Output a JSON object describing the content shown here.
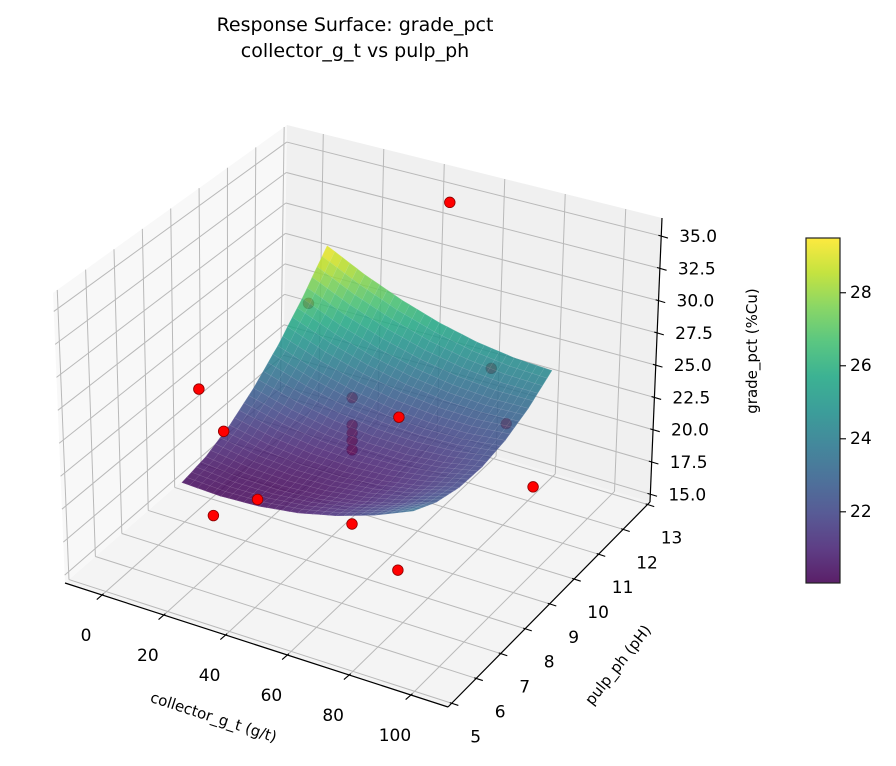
{
  "chart_data": {
    "type": "surface3d",
    "title": "Response Surface: grade_pct",
    "subtitle": "collector_g_t vs pulp_ph",
    "xlabel": "collector_g_t (g/t)",
    "ylabel": "pulp_ph (pH)",
    "zlabel": "grade_pct (%Cu)",
    "xlim": [
      -12,
      112
    ],
    "ylim": [
      4.85,
      13.1
    ],
    "zlim": [
      14.4,
      36.4
    ],
    "xticks": [
      "0",
      "20",
      "40",
      "60",
      "80",
      "100"
    ],
    "yticks": [
      "5",
      "6",
      "7",
      "8",
      "9",
      "10",
      "11",
      "12",
      "13"
    ],
    "zticks": [
      "15.0",
      "17.5",
      "20.0",
      "22.5",
      "25.0",
      "27.5",
      "30.0",
      "32.5",
      "35.0"
    ],
    "grid": true,
    "colormap": "viridis",
    "colorbar": {
      "range": [
        20.05,
        29.5
      ],
      "ticks": [
        "22",
        "24",
        "26",
        "28"
      ],
      "placement": "right"
    },
    "surface": {
      "x": [
        10,
        22.5,
        35,
        47.5,
        60,
        72.5,
        85
      ],
      "y": [
        6.8,
        7.7,
        8.6,
        9.5,
        10.4,
        11.3,
        12.2
      ],
      "z": [
        [
          20.3,
          20.17,
          20.3,
          20.7,
          21.37,
          22.3,
          23.5
        ],
        [
          20.72,
          20.36,
          20.27,
          20.44,
          20.88,
          21.58,
          22.56
        ],
        [
          21.59,
          21.0,
          20.68,
          20.62,
          20.83,
          21.31,
          22.06
        ],
        [
          22.9,
          22.08,
          21.53,
          21.25,
          21.23,
          21.48,
          22.0
        ],
        [
          24.66,
          23.61,
          22.83,
          22.32,
          22.08,
          22.1,
          22.39
        ],
        [
          26.86,
          25.58,
          24.58,
          23.84,
          23.37,
          23.16,
          23.22
        ],
        [
          29.5,
          28.0,
          26.77,
          25.8,
          25.1,
          24.67,
          24.5
        ]
      ],
      "alpha": 0.85
    },
    "points": {
      "color": "#ff0000",
      "edge_color": "#8b0000",
      "values": [
        {
          "x": 80,
          "y": 6.8,
          "z": 18.7,
          "side": "above"
        },
        {
          "x": 20,
          "y": 6.8,
          "z": 18.5,
          "side": "above"
        },
        {
          "x": 80,
          "y": 12.2,
          "z": 15.1,
          "side": "above"
        },
        {
          "x": 0,
          "y": 8.6,
          "z": 23.7,
          "side": "above"
        },
        {
          "x": 0,
          "y": 9.5,
          "z": 18.8,
          "side": "above"
        },
        {
          "x": 50,
          "y": 5.0,
          "z": 25.0,
          "side": "above"
        },
        {
          "x": 50,
          "y": 12.2,
          "z": 35.5,
          "side": "above"
        },
        {
          "x": 80,
          "y": 10.4,
          "z": 27.6,
          "side": "below"
        },
        {
          "x": 100,
          "y": 8.6,
          "z": 27.9,
          "side": "below"
        },
        {
          "x": 50,
          "y": 10.4,
          "z": 21.8,
          "side": "above"
        },
        {
          "x": 50,
          "y": 8.6,
          "z": 26.5,
          "side": "below"
        },
        {
          "x": 50,
          "y": 8.6,
          "z": 24.4,
          "side": "below"
        },
        {
          "x": 50,
          "y": 8.6,
          "z": 23.8,
          "side": "below"
        },
        {
          "x": 50,
          "y": 8.6,
          "z": 23.2,
          "side": "below"
        },
        {
          "x": 50,
          "y": 8.6,
          "z": 22.5,
          "side": "below"
        },
        {
          "x": 20,
          "y": 10.4,
          "z": 28.7,
          "side": "below"
        },
        {
          "x": 50,
          "y": 8.6,
          "z": 16.8,
          "side": "above"
        }
      ]
    }
  }
}
